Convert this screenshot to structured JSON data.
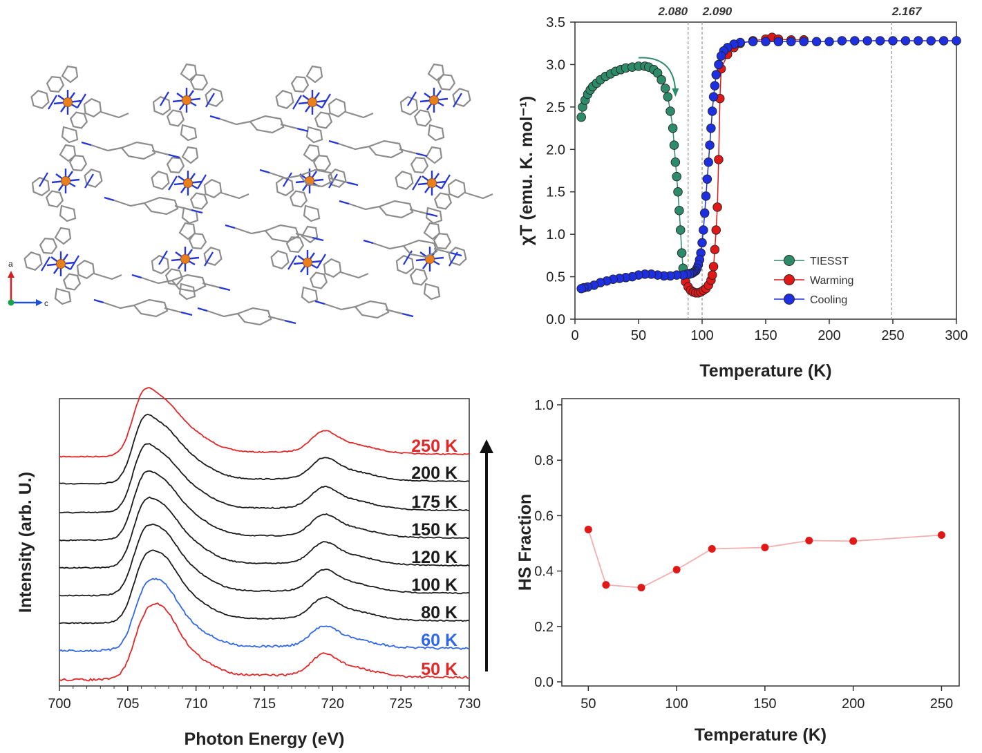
{
  "crystal": {
    "axes": [
      "a",
      "c"
    ],
    "colors": {
      "iron": "#e8801e",
      "nitrogen": "#2436d8",
      "carbon": "#8c8c8c",
      "axis_a": "#d61f1f",
      "axis_b": "#18a34a",
      "axis_c": "#1e4fd6"
    }
  },
  "chart_data": [
    {
      "id": "magnetic",
      "type": "scatter",
      "xlabel": "Temperature (K)",
      "ylabel": "χT (emu. K. mol⁻¹)",
      "xlim": [
        0,
        300
      ],
      "ylim": [
        0,
        3.5
      ],
      "xticks": [
        0,
        50,
        100,
        150,
        200,
        250,
        300
      ],
      "yticks": [
        0.0,
        0.5,
        1.0,
        1.5,
        2.0,
        2.5,
        3.0,
        3.5
      ],
      "vlines": [
        {
          "x": 89,
          "label": "2.080"
        },
        {
          "x": 100,
          "label": "2.090"
        },
        {
          "x": 249,
          "label": "2.167"
        }
      ],
      "series": [
        {
          "name": "TIESST",
          "color": "#2e8b6a",
          "x": [
            5,
            6,
            8,
            10,
            12,
            14,
            17,
            20,
            24,
            28,
            32,
            36,
            40,
            45,
            50,
            55,
            58,
            62,
            65,
            68,
            71,
            73,
            75,
            77,
            78,
            79,
            80,
            81,
            82,
            83,
            84,
            85
          ],
          "y": [
            2.38,
            2.5,
            2.58,
            2.65,
            2.7,
            2.74,
            2.78,
            2.82,
            2.86,
            2.89,
            2.92,
            2.94,
            2.96,
            2.97,
            2.98,
            2.98,
            2.97,
            2.94,
            2.9,
            2.82,
            2.72,
            2.62,
            2.45,
            2.25,
            2.05,
            1.85,
            1.68,
            1.5,
            1.28,
            1.05,
            0.78,
            0.6
          ]
        },
        {
          "name": "Warming",
          "color": "#e01818",
          "x": [
            87,
            89,
            91,
            93,
            95,
            97,
            99,
            101,
            103,
            105,
            107,
            108,
            109,
            110,
            111,
            112,
            113,
            114,
            115,
            120,
            125,
            130,
            140,
            150,
            155,
            160,
            170,
            180
          ],
          "y": [
            0.44,
            0.38,
            0.34,
            0.32,
            0.31,
            0.31,
            0.32,
            0.34,
            0.36,
            0.4,
            0.46,
            0.52,
            0.62,
            0.82,
            1.05,
            1.32,
            1.88,
            2.6,
            2.95,
            3.12,
            3.2,
            3.25,
            3.28,
            3.3,
            3.32,
            3.3,
            3.29,
            3.29
          ]
        },
        {
          "name": "Cooling",
          "color": "#1d2fe0",
          "x": [
            300,
            290,
            280,
            270,
            260,
            250,
            240,
            230,
            220,
            210,
            200,
            190,
            180,
            170,
            160,
            150,
            140,
            130,
            125,
            120,
            117,
            115,
            113,
            111,
            110,
            109,
            108,
            107,
            106,
            105,
            104,
            103,
            102,
            101,
            100,
            99,
            98,
            97,
            96,
            95,
            94,
            93,
            92,
            91,
            90,
            88,
            85,
            80,
            75,
            70,
            65,
            60,
            55,
            50,
            45,
            40,
            35,
            30,
            25,
            20,
            15,
            10,
            7,
            5
          ],
          "y": [
            3.28,
            3.28,
            3.28,
            3.28,
            3.28,
            3.28,
            3.28,
            3.28,
            3.28,
            3.28,
            3.27,
            3.27,
            3.27,
            3.27,
            3.27,
            3.27,
            3.27,
            3.26,
            3.24,
            3.2,
            3.16,
            3.1,
            3.0,
            2.88,
            2.75,
            2.62,
            2.45,
            2.25,
            2.05,
            1.85,
            1.65,
            1.45,
            1.25,
            1.05,
            0.9,
            0.78,
            0.7,
            0.64,
            0.6,
            0.57,
            0.56,
            0.55,
            0.54,
            0.54,
            0.53,
            0.53,
            0.52,
            0.52,
            0.51,
            0.51,
            0.52,
            0.53,
            0.53,
            0.52,
            0.5,
            0.49,
            0.48,
            0.47,
            0.45,
            0.43,
            0.4,
            0.38,
            0.37,
            0.36
          ]
        }
      ],
      "legend": {
        "placement": "bottom-right",
        "labels": [
          "TIESST",
          "Warming",
          "Cooling"
        ]
      }
    },
    {
      "id": "xas",
      "type": "line",
      "xlabel": "Photon Energy (eV)",
      "ylabel": "Intensity (arb. U.)",
      "xlim": [
        700,
        730
      ],
      "xticks": [
        700,
        705,
        710,
        715,
        720,
        725,
        730
      ],
      "series": [
        {
          "name": "250 K",
          "color": "#e32626"
        },
        {
          "name": "200 K",
          "color": "#1a1a1a"
        },
        {
          "name": "175 K",
          "color": "#1a1a1a"
        },
        {
          "name": "150 K",
          "color": "#1a1a1a"
        },
        {
          "name": "120 K",
          "color": "#1a1a1a"
        },
        {
          "name": "100 K",
          "color": "#1a1a1a"
        },
        {
          "name": "80 K",
          "color": "#1a1a1a"
        },
        {
          "name": "60 K",
          "color": "#2f67e8"
        },
        {
          "name": "50 K",
          "color": "#e32626"
        }
      ],
      "arrow_direction": "up"
    },
    {
      "id": "hs_fraction",
      "type": "line",
      "xlabel": "Temperature (K)",
      "ylabel": "HS Fraction",
      "xlim": [
        35,
        260
      ],
      "ylim": [
        0,
        1.0
      ],
      "xticks": [
        50,
        100,
        150,
        200,
        250
      ],
      "yticks": [
        0.0,
        0.2,
        0.4,
        0.6,
        0.8,
        1.0
      ],
      "color": "#e01818",
      "x": [
        50,
        60,
        80,
        100,
        120,
        150,
        175,
        200,
        250
      ],
      "y": [
        0.55,
        0.35,
        0.34,
        0.405,
        0.48,
        0.485,
        0.51,
        0.508,
        0.53
      ]
    }
  ]
}
